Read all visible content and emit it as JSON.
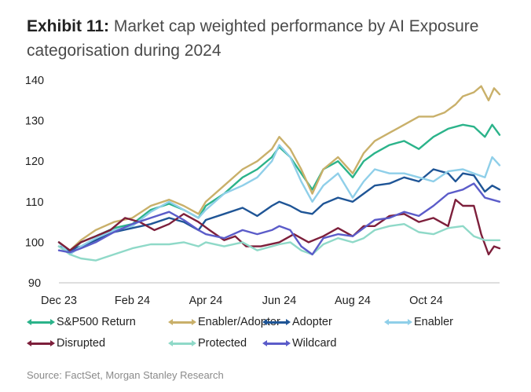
{
  "header": {
    "exhibit": "Exhibit 11:",
    "title": "Market cap weighted performance by AI Exposure categorisation during 2024"
  },
  "source": "Source: FactSet, Morgan Stanley Research",
  "chart_data": {
    "type": "line",
    "ylim": [
      90,
      140
    ],
    "yticks": [
      90,
      100,
      110,
      120,
      130,
      140
    ],
    "xticks": [
      {
        "label": "Dec 23",
        "t": 0
      },
      {
        "label": "Feb 24",
        "t": 2
      },
      {
        "label": "Apr 24",
        "t": 4
      },
      {
        "label": "Jun 24",
        "t": 6
      },
      {
        "label": "Aug 24",
        "t": 8
      },
      {
        "label": "Oct 24",
        "t": 10
      }
    ],
    "x_max": 12,
    "grid": false,
    "legend_position": "bottom",
    "series": [
      {
        "name": "S&P500 Return",
        "color": "#2bb38a",
        "points": [
          [
            0,
            100
          ],
          [
            0.3,
            97.5
          ],
          [
            0.6,
            100
          ],
          [
            1,
            101.5
          ],
          [
            1.5,
            103.5
          ],
          [
            2,
            104.5
          ],
          [
            2.5,
            108
          ],
          [
            3,
            109.5
          ],
          [
            3.4,
            108
          ],
          [
            3.8,
            106
          ],
          [
            4,
            109
          ],
          [
            4.5,
            112
          ],
          [
            5,
            116
          ],
          [
            5.4,
            118
          ],
          [
            5.8,
            121
          ],
          [
            6,
            123.5
          ],
          [
            6.3,
            121
          ],
          [
            6.6,
            117
          ],
          [
            6.9,
            113
          ],
          [
            7.2,
            118
          ],
          [
            7.6,
            120
          ],
          [
            8,
            116
          ],
          [
            8.3,
            120
          ],
          [
            8.6,
            122
          ],
          [
            9,
            124
          ],
          [
            9.4,
            125
          ],
          [
            9.8,
            123
          ],
          [
            10.2,
            126
          ],
          [
            10.6,
            128
          ],
          [
            11,
            129
          ],
          [
            11.3,
            128.5
          ],
          [
            11.6,
            126
          ],
          [
            11.8,
            129
          ],
          [
            12,
            126.5
          ]
        ]
      },
      {
        "name": "Enabler/Adopter",
        "color": "#c9b06a",
        "points": [
          [
            0,
            100
          ],
          [
            0.3,
            98
          ],
          [
            0.6,
            100.5
          ],
          [
            1,
            103
          ],
          [
            1.5,
            105
          ],
          [
            2,
            106
          ],
          [
            2.5,
            109
          ],
          [
            3,
            110.5
          ],
          [
            3.4,
            109
          ],
          [
            3.8,
            107
          ],
          [
            4,
            110
          ],
          [
            4.5,
            114
          ],
          [
            5,
            118
          ],
          [
            5.4,
            120
          ],
          [
            5.8,
            123
          ],
          [
            6,
            126
          ],
          [
            6.3,
            123
          ],
          [
            6.6,
            118
          ],
          [
            6.9,
            112
          ],
          [
            7.2,
            118
          ],
          [
            7.6,
            121
          ],
          [
            8,
            117
          ],
          [
            8.3,
            122
          ],
          [
            8.6,
            125
          ],
          [
            9,
            127
          ],
          [
            9.4,
            129
          ],
          [
            9.8,
            131
          ],
          [
            10.2,
            131
          ],
          [
            10.5,
            132
          ],
          [
            10.8,
            134
          ],
          [
            11,
            136
          ],
          [
            11.3,
            137
          ],
          [
            11.5,
            138.5
          ],
          [
            11.7,
            135
          ],
          [
            11.85,
            138
          ],
          [
            12,
            136.5
          ]
        ]
      },
      {
        "name": "Adopter",
        "color": "#1f5596",
        "points": [
          [
            0,
            99
          ],
          [
            0.3,
            98
          ],
          [
            0.6,
            99
          ],
          [
            1,
            100.5
          ],
          [
            1.5,
            102.5
          ],
          [
            2,
            103.5
          ],
          [
            2.5,
            104.5
          ],
          [
            3,
            106
          ],
          [
            3.4,
            105
          ],
          [
            3.8,
            103
          ],
          [
            4,
            105.5
          ],
          [
            4.5,
            107
          ],
          [
            5,
            108.5
          ],
          [
            5.4,
            106.5
          ],
          [
            5.8,
            109
          ],
          [
            6,
            110
          ],
          [
            6.3,
            109
          ],
          [
            6.6,
            107.5
          ],
          [
            6.9,
            107
          ],
          [
            7.2,
            109.5
          ],
          [
            7.6,
            111
          ],
          [
            8,
            110
          ],
          [
            8.3,
            112
          ],
          [
            8.6,
            114
          ],
          [
            9,
            114.5
          ],
          [
            9.4,
            116
          ],
          [
            9.8,
            115
          ],
          [
            10.2,
            118
          ],
          [
            10.6,
            117
          ],
          [
            10.8,
            115
          ],
          [
            11,
            117
          ],
          [
            11.3,
            116.5
          ],
          [
            11.6,
            112.5
          ],
          [
            11.8,
            114
          ],
          [
            12,
            113
          ]
        ]
      },
      {
        "name": "Enabler",
        "color": "#8fcfe9",
        "points": [
          [
            0,
            100
          ],
          [
            0.3,
            97
          ],
          [
            0.6,
            99
          ],
          [
            1,
            101
          ],
          [
            1.5,
            103
          ],
          [
            2,
            104
          ],
          [
            2.5,
            107.5
          ],
          [
            3,
            110
          ],
          [
            3.4,
            108
          ],
          [
            3.8,
            106
          ],
          [
            4,
            108
          ],
          [
            4.5,
            112
          ],
          [
            5,
            114
          ],
          [
            5.4,
            116
          ],
          [
            5.8,
            120
          ],
          [
            6,
            124
          ],
          [
            6.3,
            121
          ],
          [
            6.6,
            115
          ],
          [
            6.9,
            110
          ],
          [
            7.2,
            114
          ],
          [
            7.6,
            117
          ],
          [
            8,
            111
          ],
          [
            8.3,
            115
          ],
          [
            8.6,
            118
          ],
          [
            9,
            117
          ],
          [
            9.4,
            117
          ],
          [
            9.8,
            116
          ],
          [
            10.2,
            115
          ],
          [
            10.6,
            117.5
          ],
          [
            11,
            118
          ],
          [
            11.3,
            117
          ],
          [
            11.6,
            116
          ],
          [
            11.8,
            121
          ],
          [
            12,
            119
          ]
        ]
      },
      {
        "name": "Disrupted",
        "color": "#7d1f3b",
        "points": [
          [
            0,
            100
          ],
          [
            0.3,
            98
          ],
          [
            0.6,
            100
          ],
          [
            1,
            101.5
          ],
          [
            1.4,
            103
          ],
          [
            1.8,
            106
          ],
          [
            2.2,
            105
          ],
          [
            2.6,
            103
          ],
          [
            3,
            104.5
          ],
          [
            3.4,
            107
          ],
          [
            3.8,
            105
          ],
          [
            4.1,
            103
          ],
          [
            4.5,
            100.5
          ],
          [
            4.8,
            101.5
          ],
          [
            5.1,
            99
          ],
          [
            5.5,
            99
          ],
          [
            6,
            100
          ],
          [
            6.4,
            102
          ],
          [
            6.8,
            100
          ],
          [
            7.2,
            101.5
          ],
          [
            7.6,
            103.5
          ],
          [
            8,
            101.5
          ],
          [
            8.3,
            104
          ],
          [
            8.6,
            104
          ],
          [
            9,
            106.5
          ],
          [
            9.4,
            107
          ],
          [
            9.8,
            105
          ],
          [
            10.2,
            106
          ],
          [
            10.6,
            104
          ],
          [
            10.8,
            110.5
          ],
          [
            11,
            109
          ],
          [
            11.3,
            109
          ],
          [
            11.5,
            102
          ],
          [
            11.7,
            97
          ],
          [
            11.85,
            99
          ],
          [
            12,
            98.5
          ]
        ]
      },
      {
        "name": "Protected",
        "color": "#8fd9c8",
        "points": [
          [
            0,
            99
          ],
          [
            0.3,
            97
          ],
          [
            0.6,
            96
          ],
          [
            1,
            95.5
          ],
          [
            1.5,
            97
          ],
          [
            2,
            98.5
          ],
          [
            2.5,
            99.5
          ],
          [
            3,
            99.5
          ],
          [
            3.4,
            100
          ],
          [
            3.8,
            99
          ],
          [
            4,
            100
          ],
          [
            4.5,
            99
          ],
          [
            5,
            100
          ],
          [
            5.4,
            98
          ],
          [
            5.8,
            99
          ],
          [
            6,
            99.5
          ],
          [
            6.3,
            100
          ],
          [
            6.6,
            98
          ],
          [
            6.9,
            97
          ],
          [
            7.2,
            99.5
          ],
          [
            7.6,
            101
          ],
          [
            8,
            100
          ],
          [
            8.3,
            101
          ],
          [
            8.6,
            103
          ],
          [
            9,
            104
          ],
          [
            9.4,
            104.5
          ],
          [
            9.8,
            102.5
          ],
          [
            10.2,
            102
          ],
          [
            10.6,
            103.5
          ],
          [
            11,
            104
          ],
          [
            11.3,
            101.5
          ],
          [
            11.6,
            100.5
          ],
          [
            12,
            100.5
          ]
        ]
      },
      {
        "name": "Wildcard",
        "color": "#5b5cc9",
        "points": [
          [
            0,
            98
          ],
          [
            0.3,
            97.5
          ],
          [
            0.6,
            98.5
          ],
          [
            1,
            100
          ],
          [
            1.5,
            102.5
          ],
          [
            2,
            104.5
          ],
          [
            2.5,
            106
          ],
          [
            3,
            107.5
          ],
          [
            3.4,
            105.5
          ],
          [
            3.8,
            103
          ],
          [
            4,
            102
          ],
          [
            4.5,
            101
          ],
          [
            5,
            103
          ],
          [
            5.4,
            102
          ],
          [
            5.8,
            103
          ],
          [
            6,
            104
          ],
          [
            6.3,
            103
          ],
          [
            6.6,
            99
          ],
          [
            6.9,
            97
          ],
          [
            7.2,
            101
          ],
          [
            7.6,
            102
          ],
          [
            8,
            101.5
          ],
          [
            8.3,
            103.5
          ],
          [
            8.6,
            105.5
          ],
          [
            9,
            106
          ],
          [
            9.4,
            107.5
          ],
          [
            9.8,
            106.5
          ],
          [
            10.2,
            109
          ],
          [
            10.6,
            112
          ],
          [
            11,
            113
          ],
          [
            11.3,
            114.5
          ],
          [
            11.6,
            111
          ],
          [
            11.8,
            110.5
          ],
          [
            12,
            110
          ]
        ]
      }
    ]
  }
}
